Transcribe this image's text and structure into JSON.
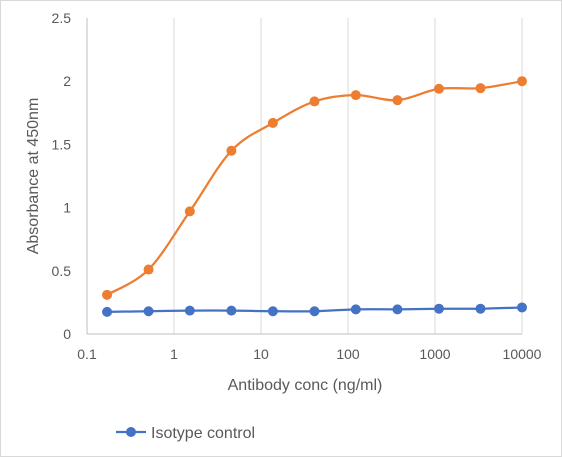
{
  "chart_data": {
    "type": "line",
    "xscale": "log",
    "xlabel": "Antibody conc (ng/ml)",
    "ylabel": "Absorbance at 450nm",
    "xlim": [
      0.1,
      10000
    ],
    "ylim": [
      0,
      2.5
    ],
    "x_ticks": [
      "0.1",
      "1",
      "10",
      "100",
      "1000",
      "10000"
    ],
    "y_ticks": [
      "0",
      "0.5",
      "1",
      "1.5",
      "2",
      "2.5"
    ],
    "grid": "vertical",
    "legend": "bottom-left",
    "x": [
      0.17,
      0.51,
      1.52,
      4.57,
      13.7,
      41.2,
      123,
      370,
      1111,
      3333,
      10000
    ],
    "series": [
      {
        "color": "#ED7D31",
        "values": [
          0.31,
          0.51,
          0.97,
          1.45,
          1.67,
          1.84,
          1.89,
          1.85,
          1.94,
          1.945,
          2.0
        ]
      },
      {
        "name": "Isotype control",
        "color": "#4472C4",
        "values": [
          0.175,
          0.18,
          0.185,
          0.185,
          0.18,
          0.18,
          0.195,
          0.195,
          0.2,
          0.2,
          0.21
        ]
      }
    ]
  }
}
